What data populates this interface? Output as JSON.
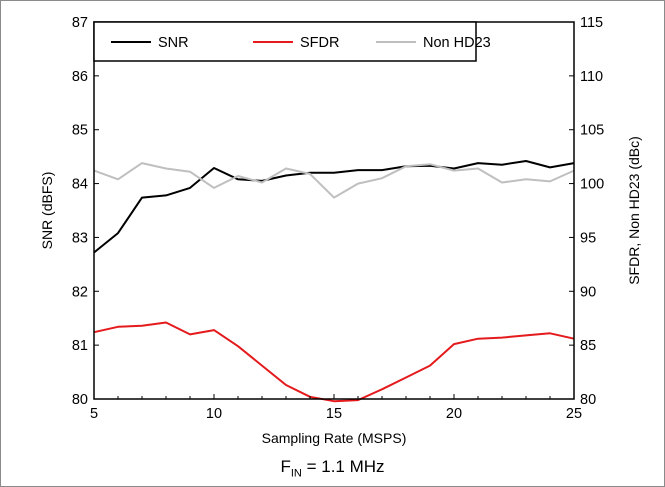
{
  "chart_data": {
    "type": "line",
    "x": [
      5,
      6,
      7,
      8,
      9,
      10,
      11,
      12,
      13,
      14,
      15,
      16,
      17,
      18,
      19,
      20,
      21,
      22,
      23,
      24,
      25
    ],
    "xlabel": "Sampling Rate (MSPS)",
    "xlim": [
      5,
      25
    ],
    "xticks": [
      5,
      10,
      15,
      20,
      25
    ],
    "ylabel_left": "SNR (dBFS)",
    "ylim_left": [
      80,
      87
    ],
    "yticks_left": [
      80,
      81,
      82,
      83,
      84,
      85,
      86,
      87
    ],
    "ylabel_right": "SFDR, Non HD23 (dBc)",
    "ylim_right": [
      80,
      115
    ],
    "yticks_right": [
      80,
      85,
      90,
      95,
      100,
      105,
      110,
      115
    ],
    "grid": false,
    "legend_position": "top-left",
    "series": [
      {
        "name": "SNR",
        "axis": "left",
        "color": "#000000",
        "values": [
          82.72,
          83.08,
          83.74,
          83.78,
          83.92,
          84.29,
          84.08,
          84.05,
          84.15,
          84.2,
          84.2,
          84.25,
          84.25,
          84.32,
          84.33,
          84.28,
          84.38,
          84.35,
          84.42,
          84.3,
          84.38
        ]
      },
      {
        "name": "SFDR",
        "axis": "right",
        "color": "#e41a1c",
        "values": [
          86.2,
          86.7,
          86.8,
          87.1,
          86.0,
          86.4,
          84.9,
          83.1,
          81.3,
          80.2,
          79.8,
          79.9,
          80.9,
          82.0,
          83.1,
          85.1,
          85.6,
          85.7,
          85.9,
          86.1,
          85.6
        ]
      },
      {
        "name": "Non HD23",
        "axis": "right",
        "color": "#bfbfbf",
        "values": [
          101.2,
          100.4,
          101.9,
          101.4,
          101.1,
          99.6,
          100.7,
          100.1,
          101.4,
          100.9,
          98.7,
          100.0,
          100.5,
          101.6,
          101.8,
          101.2,
          101.4,
          100.1,
          100.4,
          100.2,
          101.2
        ]
      }
    ],
    "caption": {
      "base": "F",
      "sub": "IN",
      "rest": " = 1.1 MHz"
    }
  }
}
